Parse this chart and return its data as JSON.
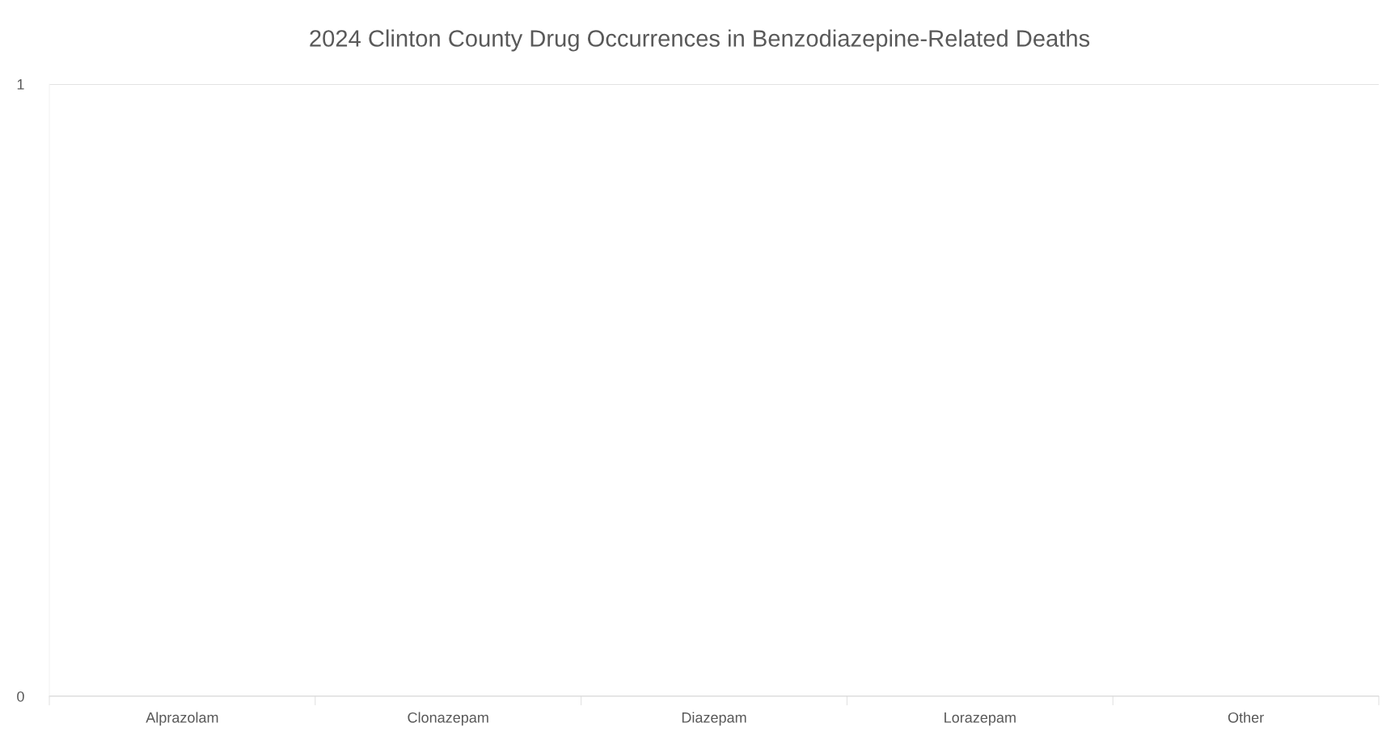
{
  "chart_data": {
    "type": "bar",
    "title": "2024 Clinton County Drug Occurrences in Benzodiazepine-Related Deaths",
    "categories": [
      "Alprazolam",
      "Clonazepam",
      "Diazepam",
      "Lorazepam",
      "Other"
    ],
    "values": [
      0,
      0,
      0,
      0,
      0
    ],
    "ylim": [
      0,
      1
    ],
    "yticks": [
      0,
      1
    ],
    "grid": "y"
  }
}
